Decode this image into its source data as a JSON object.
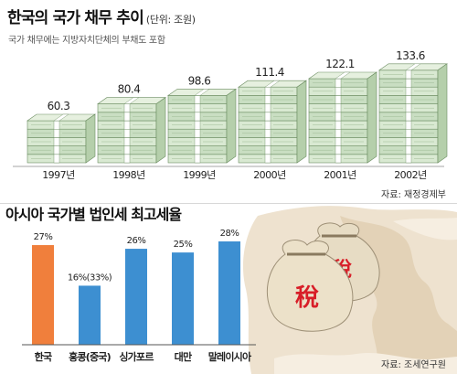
{
  "chart_data": [
    {
      "type": "bar",
      "title": "한국의 국가 채무 추이",
      "unit": "(단위: 조원)",
      "subtitle": "국가 채무에는 지방자치단체의 부채도 포함",
      "categories": [
        "1997년",
        "1998년",
        "1999년",
        "2000년",
        "2001년",
        "2002년"
      ],
      "values": [
        60.3,
        80.4,
        98.6,
        111.4,
        122.1,
        133.6
      ],
      "value_labels": [
        "60.3",
        "80.4",
        "98.6",
        "111.4",
        "122.1",
        "133.6"
      ],
      "source": "자료: 재정경제부"
    },
    {
      "type": "bar",
      "title": "아시아 국가별 법인세 최고세율",
      "categories": [
        "한국",
        "홍콩(중국)",
        "싱가포르",
        "대만",
        "말레이시아"
      ],
      "values": [
        27,
        16,
        26,
        25,
        28
      ],
      "value_labels": [
        "27%",
        "16%(33%)",
        "26%",
        "25%",
        "28%"
      ],
      "colors": [
        "#f07f3c",
        "#3d8fd1",
        "#3d8fd1",
        "#3d8fd1",
        "#3d8fd1"
      ],
      "source": "자료: 조세연구원"
    }
  ],
  "decor": {
    "tax_char": "稅"
  }
}
